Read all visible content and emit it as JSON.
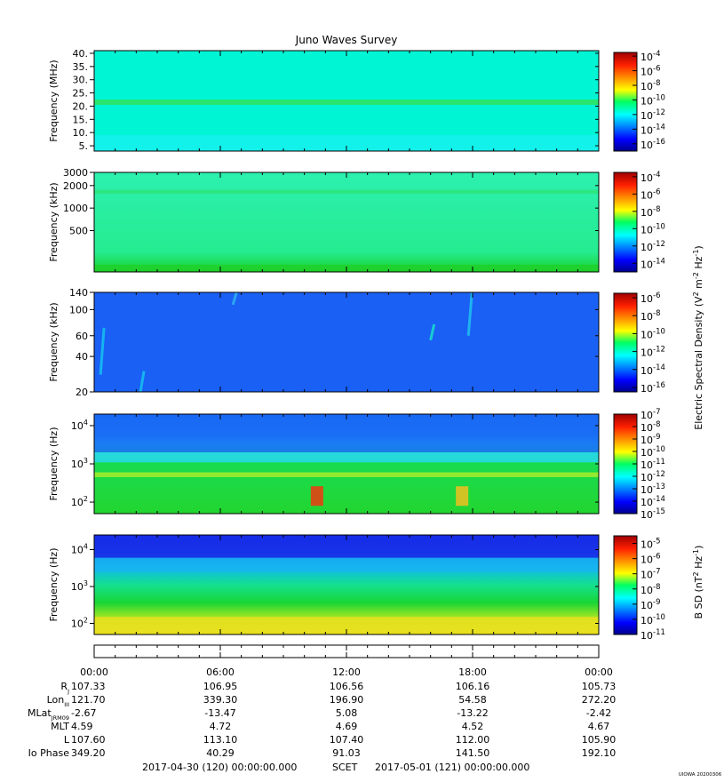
{
  "title": "Juno Waves Survey",
  "credit": "UIOWA 20200306",
  "colors": {
    "panel1_bg": "#00f5d5",
    "panel2_bg": "#21f29a",
    "panel3_bg": "#1a60f5",
    "panel4_bg": "#19d84c",
    "panel5_bg": "#14c63a"
  },
  "chart_data": [
    {
      "type": "heatmap",
      "panel": 1,
      "ylabel": "Frequency (MHz)",
      "ylim": [
        3,
        41
      ],
      "yscale": "linear",
      "yticks": [
        {
          "value": 40,
          "label": "40."
        },
        {
          "value": 35,
          "label": "35."
        },
        {
          "value": 30,
          "label": "30."
        },
        {
          "value": 25,
          "label": "25."
        },
        {
          "value": 20,
          "label": "20."
        },
        {
          "value": 15,
          "label": "15."
        },
        {
          "value": 10,
          "label": "10."
        },
        {
          "value": 5,
          "label": "5."
        }
      ],
      "features": [
        {
          "kind": "band",
          "ymin": 20.5,
          "ymax": 22.5,
          "color": "#2ee25a"
        },
        {
          "kind": "band",
          "ymin": 3,
          "ymax": 9,
          "color": "#16f0ee"
        }
      ],
      "colorbar": {
        "ticks": [
          {
            "exp": "-4"
          },
          {
            "exp": "-6"
          },
          {
            "exp": "-8"
          },
          {
            "exp": "-10"
          },
          {
            "exp": "-12"
          },
          {
            "exp": "-14"
          },
          {
            "exp": "-16"
          }
        ],
        "range_exp": [
          -17,
          -3.5
        ]
      }
    },
    {
      "type": "heatmap",
      "panel": 2,
      "ylabel": "Frequency (kHz)",
      "ylim": [
        140,
        3000
      ],
      "yscale": "log",
      "yticks": [
        {
          "value": 3000,
          "label": "3000"
        },
        {
          "value": 2000,
          "label": "2000"
        },
        {
          "value": 1000,
          "label": "1000"
        },
        {
          "value": 500,
          "label": "500"
        }
      ],
      "features": [
        {
          "kind": "band",
          "ymin": 1550,
          "ymax": 1750,
          "color": "#2de57a"
        },
        {
          "kind": "band",
          "ymin": 140,
          "ymax": 175,
          "color": "#20d02a"
        }
      ],
      "colorbar": {
        "ticks": [
          {
            "exp": "-4"
          },
          {
            "exp": "-6"
          },
          {
            "exp": "-8"
          },
          {
            "exp": "-10"
          },
          {
            "exp": "-12"
          },
          {
            "exp": "-14"
          }
        ],
        "range_exp": [
          -15,
          -3.5
        ]
      }
    },
    {
      "type": "heatmap",
      "panel": 3,
      "ylabel": "Frequency (kHz)",
      "ylim": [
        20,
        140
      ],
      "yscale": "log",
      "yticks": [
        {
          "value": 140,
          "label": "140"
        },
        {
          "value": 100,
          "label": "100"
        },
        {
          "value": 60,
          "label": "60"
        },
        {
          "value": 40,
          "label": "40"
        },
        {
          "value": 20,
          "label": "20"
        }
      ],
      "features": [
        {
          "kind": "streak",
          "hour": 0.3,
          "ymin": 28,
          "ymax": 70,
          "color": "#14c8f0"
        },
        {
          "kind": "streak",
          "hour": 2.2,
          "ymin": 20,
          "ymax": 30,
          "color": "#14c8f0"
        },
        {
          "kind": "streak",
          "hour": 6.6,
          "ymin": 110,
          "ymax": 140,
          "color": "#34b8f0"
        },
        {
          "kind": "streak",
          "hour": 16.0,
          "ymin": 55,
          "ymax": 75,
          "color": "#18e8c8"
        },
        {
          "kind": "streak",
          "hour": 17.8,
          "ymin": 60,
          "ymax": 140,
          "color": "#20c8f0"
        }
      ],
      "colorbar": {
        "ticks": [
          {
            "exp": "-6"
          },
          {
            "exp": "-8"
          },
          {
            "exp": "-10"
          },
          {
            "exp": "-12"
          },
          {
            "exp": "-14"
          },
          {
            "exp": "-16"
          }
        ],
        "range_exp": [
          -16.5,
          -5.5
        ]
      }
    },
    {
      "type": "heatmap",
      "panel": 4,
      "ylabel": "Frequency (Hz)",
      "ylim": [
        50,
        20000
      ],
      "yscale": "log",
      "yticks": [
        {
          "value": 10000,
          "base": "10",
          "exp": "4"
        },
        {
          "value": 1000,
          "base": "10",
          "exp": "3"
        },
        {
          "value": 100,
          "base": "10",
          "exp": "2"
        }
      ],
      "features": [
        {
          "kind": "band",
          "ymin": 2000,
          "ymax": 20000,
          "color": "#1a6cf5"
        },
        {
          "kind": "band",
          "ymin": 1100,
          "ymax": 2000,
          "color": "#28d8f0"
        },
        {
          "kind": "band",
          "ymin": 450,
          "ymax": 600,
          "color": "#a8ec2a"
        },
        {
          "kind": "burst",
          "hour": 10.6,
          "ymin": 80,
          "ymax": 260,
          "color": "#f03a10"
        },
        {
          "kind": "burst",
          "hour": 17.5,
          "ymin": 80,
          "ymax": 260,
          "color": "#f0c020"
        }
      ],
      "colorbar": {
        "ticks": [
          {
            "exp": "-7"
          },
          {
            "exp": "-8"
          },
          {
            "exp": "-9"
          },
          {
            "exp": "-10"
          },
          {
            "exp": "-11"
          },
          {
            "exp": "-12"
          },
          {
            "exp": "-13"
          },
          {
            "exp": "-14"
          },
          {
            "exp": "-15"
          }
        ],
        "range_exp": [
          -15,
          -7
        ]
      }
    },
    {
      "type": "heatmap",
      "panel": 5,
      "ylabel": "Frequency (Hz)",
      "ylim": [
        50,
        25000
      ],
      "yscale": "log",
      "yticks": [
        {
          "value": 10000,
          "base": "10",
          "exp": "4"
        },
        {
          "value": 1000,
          "base": "10",
          "exp": "3"
        },
        {
          "value": 100,
          "base": "10",
          "exp": "2"
        }
      ],
      "features": [
        {
          "kind": "band",
          "ymin": 6000,
          "ymax": 25000,
          "color": "#1830e8"
        },
        {
          "kind": "band",
          "ymin": 2500,
          "ymax": 6000,
          "color": "#18b4f0"
        },
        {
          "kind": "band",
          "ymin": 50,
          "ymax": 150,
          "color": "#e8e020"
        }
      ],
      "colorbar": {
        "ticks": [
          {
            "exp": "-5"
          },
          {
            "exp": "-6"
          },
          {
            "exp": "-7"
          },
          {
            "exp": "-8"
          },
          {
            "exp": "-9"
          },
          {
            "exp": "-10"
          },
          {
            "exp": "-11"
          }
        ],
        "range_exp": [
          -11,
          -4.5
        ]
      }
    }
  ],
  "colorbar_label_electric": "Electric Spectral Density (V",
  "colorbar_label_electric_sup1": "2",
  "colorbar_label_electric_mid": " m",
  "colorbar_label_electric_sup2": "-2",
  "colorbar_label_electric_mid2": " Hz",
  "colorbar_label_electric_sup3": "-1",
  "colorbar_label_electric_end": ")",
  "colorbar_label_bsd": "B SD (nT",
  "colorbar_label_bsd_sup1": "2",
  "colorbar_label_bsd_mid": " Hz",
  "colorbar_label_bsd_sup2": "-1",
  "colorbar_label_bsd_end": ")",
  "time_axis": {
    "hours": [
      0,
      6,
      12,
      18,
      24
    ],
    "labels": [
      "00:00",
      "06:00",
      "12:00",
      "18:00",
      "00:00"
    ]
  },
  "ephemeris": [
    {
      "label": "R",
      "sub": "J",
      "values": [
        "107.33",
        "106.95",
        "106.56",
        "106.16",
        "105.73"
      ]
    },
    {
      "label": "Lon",
      "sub": "III",
      "values": [
        "121.70",
        "339.30",
        "196.90",
        "54.58",
        "272.20"
      ]
    },
    {
      "label": "MLat",
      "sub": "JRM09",
      "values": [
        "-2.67",
        "-13.47",
        "5.08",
        "-13.22",
        "-2.42"
      ]
    },
    {
      "label": "MLT",
      "sub": "",
      "values": [
        "4.59",
        "4.72",
        "4.69",
        "4.52",
        "4.67"
      ]
    },
    {
      "label": "L",
      "sub": "",
      "values": [
        "107.60",
        "113.10",
        "107.40",
        "112.00",
        "105.90"
      ]
    },
    {
      "label": "Io Phase",
      "sub": "",
      "values": [
        "349.20",
        "40.29",
        "91.03",
        "141.50",
        "192.10"
      ]
    }
  ],
  "footer": {
    "start": "2017-04-30 (120) 00:00:00.000",
    "center": "SCET",
    "end": "2017-05-01 (121) 00:00:00.000"
  }
}
